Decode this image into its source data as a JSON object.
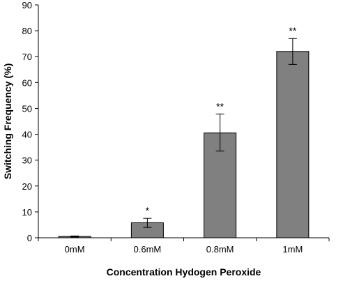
{
  "chart_data": {
    "type": "bar",
    "categories": [
      "0mM",
      "0.6mM",
      "0.8mM",
      "1mM"
    ],
    "values": [
      0.5,
      5.8,
      40.5,
      72
    ],
    "error_upper": [
      0.7,
      7.5,
      47.8,
      77
    ],
    "error_lower": [
      0.3,
      4.0,
      33.5,
      67
    ],
    "significance": [
      "",
      "*",
      "**",
      "**"
    ],
    "xlabel": "Concentration Hydogen Peroxide",
    "ylabel": "Switching Frequency (%)",
    "ylim": [
      0,
      90
    ],
    "yticks": [
      0,
      10,
      20,
      30,
      40,
      50,
      60,
      70,
      80,
      90
    ],
    "grid": false,
    "bar_color": "#808080",
    "bar_edge_color": "#000000"
  }
}
